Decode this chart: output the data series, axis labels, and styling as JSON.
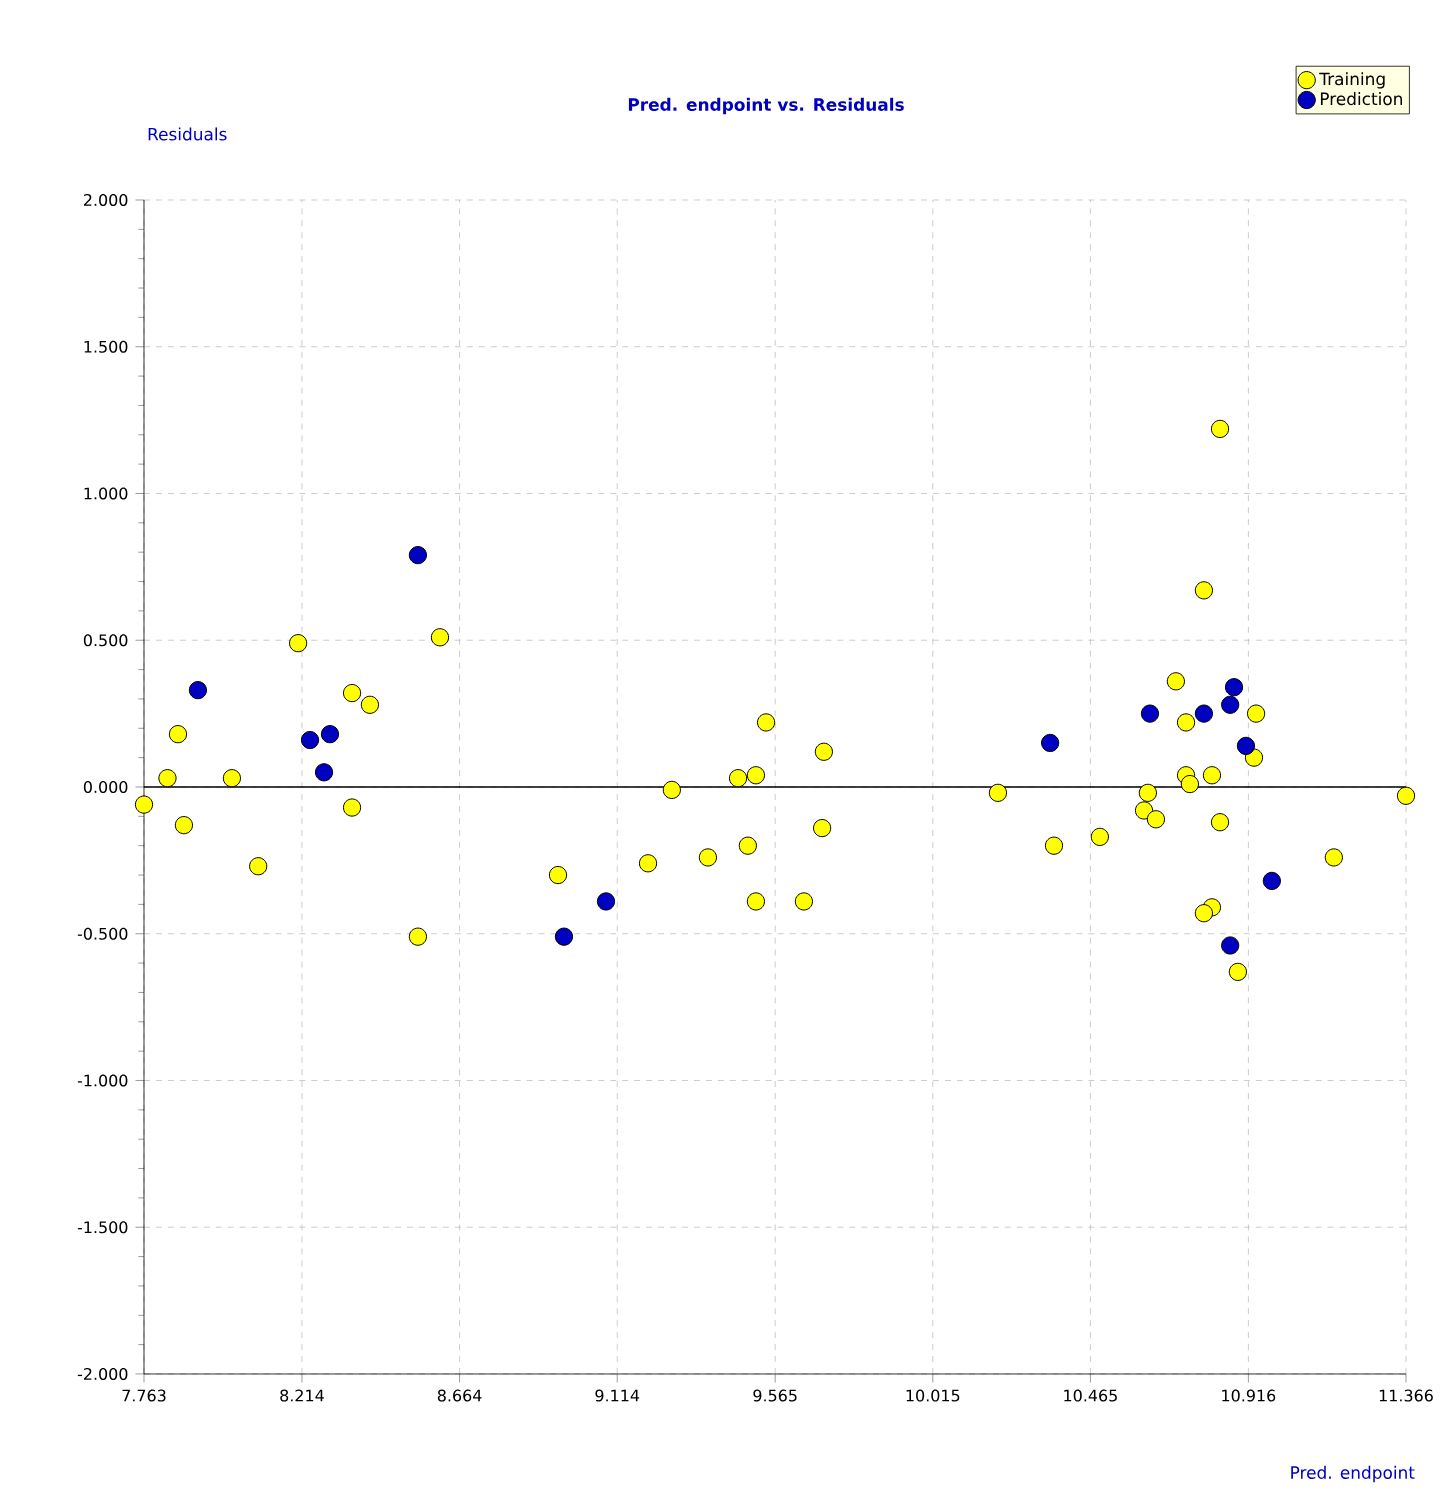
{
  "chart_data": {
    "type": "scatter",
    "title": "Pred. endpoint vs. Residuals",
    "xlabel": "Pred. endpoint",
    "ylabel": "Residuals",
    "x": [
      7.763,
      7.83,
      7.86,
      7.877,
      8.014,
      8.089,
      8.203,
      8.357,
      8.408,
      8.357,
      8.608,
      8.545,
      8.945,
      9.202,
      9.27,
      9.373,
      9.459,
      9.51,
      9.487,
      9.539,
      9.51,
      9.647,
      9.704,
      9.699,
      10.201,
      10.361,
      10.492,
      10.629,
      10.618,
      10.652,
      10.709,
      10.738,
      10.738,
      10.749,
      10.789,
      10.812,
      10.835,
      10.835,
      10.812,
      10.789,
      10.886,
      10.938,
      10.932,
      11.16,
      11.366
    ],
    "series": [
      {
        "name": "Training",
        "color": "#ffff00",
        "values": [
          -0.06,
          0.03,
          0.18,
          -0.13,
          0.03,
          -0.27,
          0.49,
          0.32,
          0.28,
          -0.07,
          0.51,
          -0.51,
          -0.3,
          -0.26,
          -0.01,
          -0.24,
          0.03,
          0.04,
          -0.2,
          0.22,
          -0.39,
          -0.39,
          0.12,
          -0.14,
          -0.02,
          -0.2,
          -0.17,
          -0.02,
          -0.08,
          -0.11,
          0.36,
          0.22,
          0.04,
          0.01,
          0.67,
          0.04,
          1.22,
          -0.12,
          -0.41,
          -0.43,
          -0.63,
          0.25,
          0.1,
          -0.24,
          -0.03
        ]
      },
      {
        "name": "Prediction",
        "color": "#0000c0",
        "x": [
          7.917,
          8.237,
          8.294,
          8.277,
          8.545,
          9.082,
          8.962,
          10.35,
          10.635,
          10.789,
          10.864,
          10.875,
          10.909,
          10.983,
          10.864
        ],
        "values": [
          0.33,
          0.16,
          0.18,
          0.05,
          0.79,
          -0.39,
          -0.51,
          0.15,
          0.25,
          0.25,
          0.28,
          0.34,
          0.14,
          -0.32,
          -0.54
        ]
      }
    ],
    "xlim": [
      7.763,
      11.366
    ],
    "xticks": [
      7.763,
      8.214,
      8.664,
      9.114,
      9.565,
      10.015,
      10.465,
      10.916,
      11.366
    ],
    "ylim": [
      -2,
      2
    ],
    "yticks": [
      {
        "value": -2,
        "label": "-2.000"
      },
      {
        "value": -1.5,
        "label": "-1.500"
      },
      {
        "value": -1,
        "label": "-1.000"
      },
      {
        "value": -0.5,
        "label": "-0.500"
      },
      {
        "value": 0,
        "label": "0.000"
      },
      {
        "value": 0.5,
        "label": "0.500"
      },
      {
        "value": 1,
        "label": "1.000"
      },
      {
        "value": 1.5,
        "label": "1.500"
      },
      {
        "value": 2,
        "label": "2.000"
      }
    ],
    "ref_lines": [
      {
        "axis": "y",
        "value": 0,
        "color": "#000000"
      }
    ],
    "grid": true,
    "legend": "top right",
    "marker": "circle"
  }
}
